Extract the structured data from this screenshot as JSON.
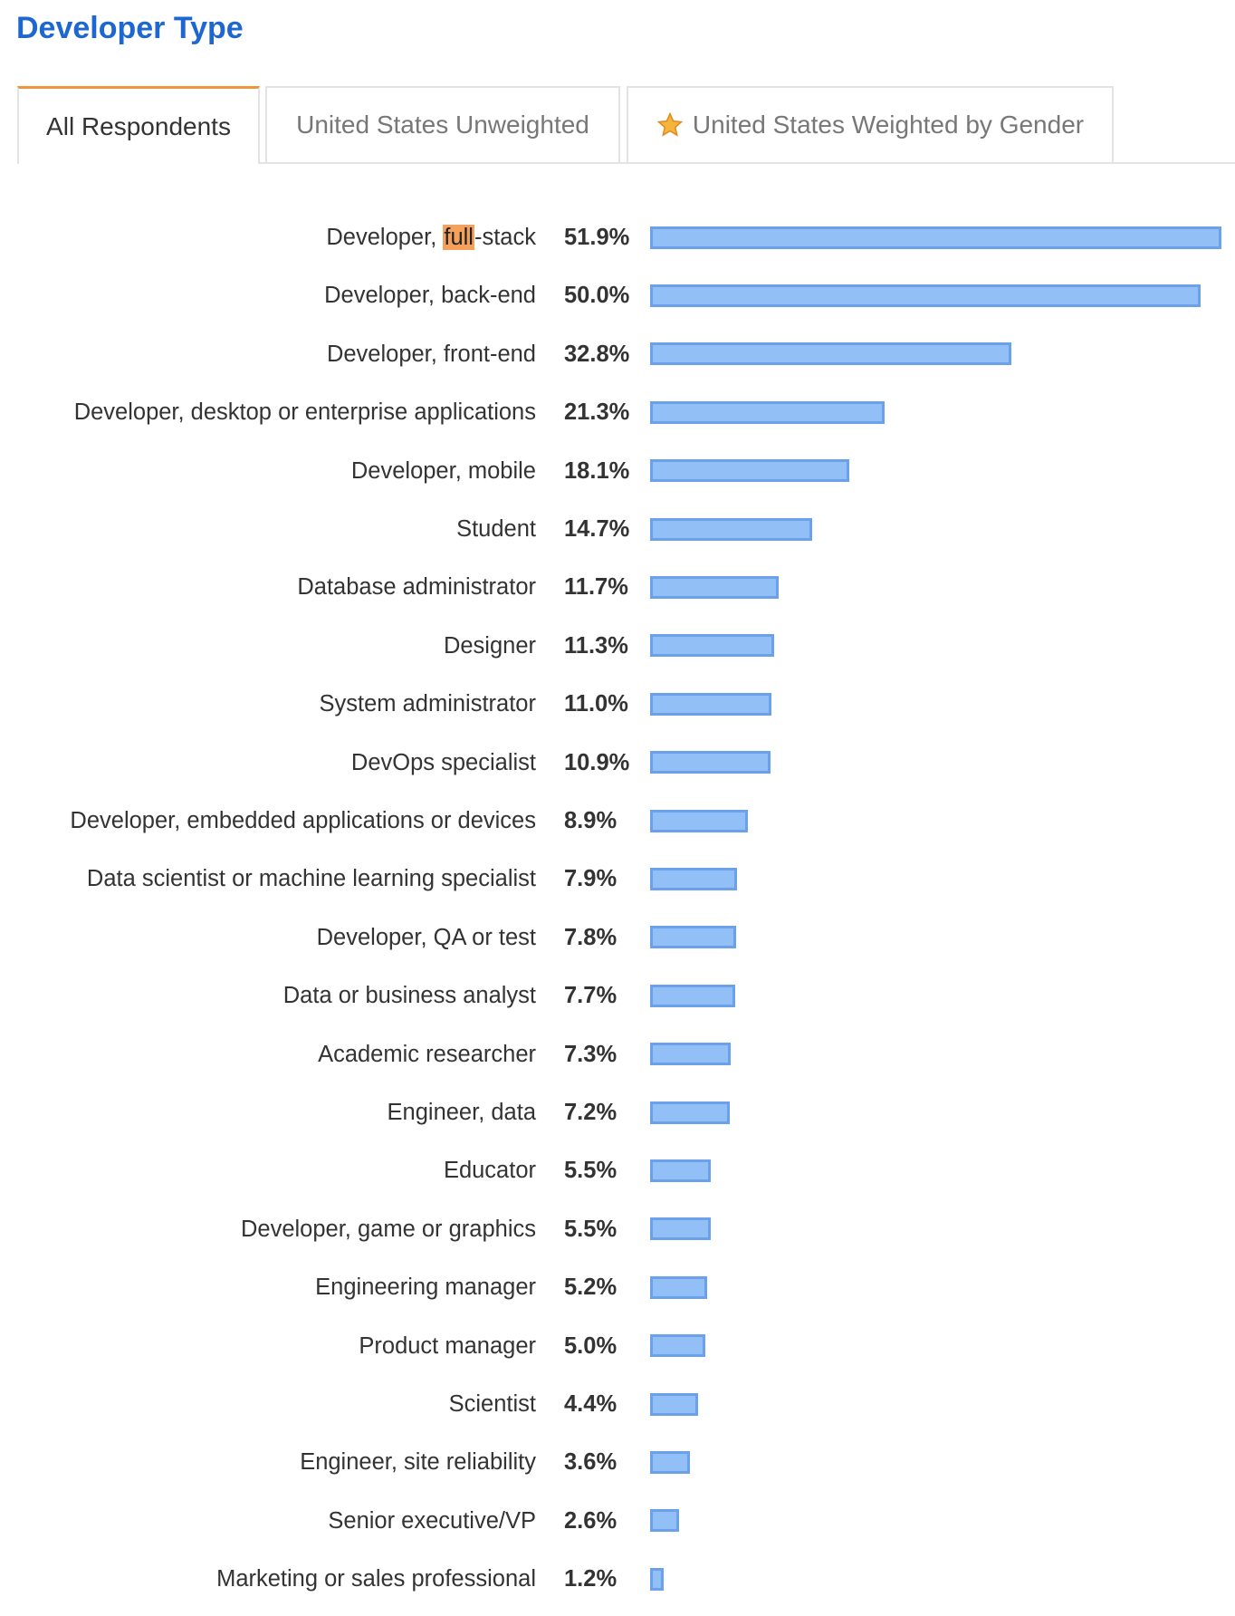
{
  "page": {
    "title": "Developer Type",
    "tabs": [
      "All Respondents",
      "United States Unweighted",
      "United States Weighted by Gender"
    ],
    "active_tab": 0,
    "starred_tab": 2,
    "highlight": "full"
  },
  "chart_data": {
    "type": "bar",
    "orientation": "horizontal",
    "color": "#93bff7",
    "edge_color": "#6ba0ea",
    "categories": [
      "Developer, full-stack",
      "Developer, back-end",
      "Developer, front-end",
      "Developer, desktop or enterprise applications",
      "Developer, mobile",
      "Student",
      "Database administrator",
      "Designer",
      "System administrator",
      "DevOps specialist",
      "Developer, embedded applications or devices",
      "Data scientist or machine learning specialist",
      "Developer, QA or test",
      "Data or business analyst",
      "Academic researcher",
      "Engineer, data",
      "Educator",
      "Developer, game or graphics",
      "Engineering manager",
      "Product manager",
      "Scientist",
      "Engineer, site reliability",
      "Senior executive/VP",
      "Marketing or sales professional"
    ],
    "values": [
      51.9,
      50.0,
      32.8,
      21.3,
      18.1,
      14.7,
      11.7,
      11.3,
      11.0,
      10.9,
      8.9,
      7.9,
      7.8,
      7.7,
      7.3,
      7.2,
      5.5,
      5.5,
      5.2,
      5.0,
      4.4,
      3.6,
      2.6,
      1.2
    ],
    "value_labels": [
      "51.9%",
      "50.0%",
      "32.8%",
      "21.3%",
      "18.1%",
      "14.7%",
      "11.7%",
      "11.3%",
      "11.0%",
      "10.9%",
      "8.9%",
      "7.9%",
      "7.8%",
      "7.7%",
      "7.3%",
      "7.2%",
      "5.5%",
      "5.5%",
      "5.2%",
      "5.0%",
      "4.4%",
      "3.6%",
      "2.6%",
      "1.2%"
    ]
  }
}
